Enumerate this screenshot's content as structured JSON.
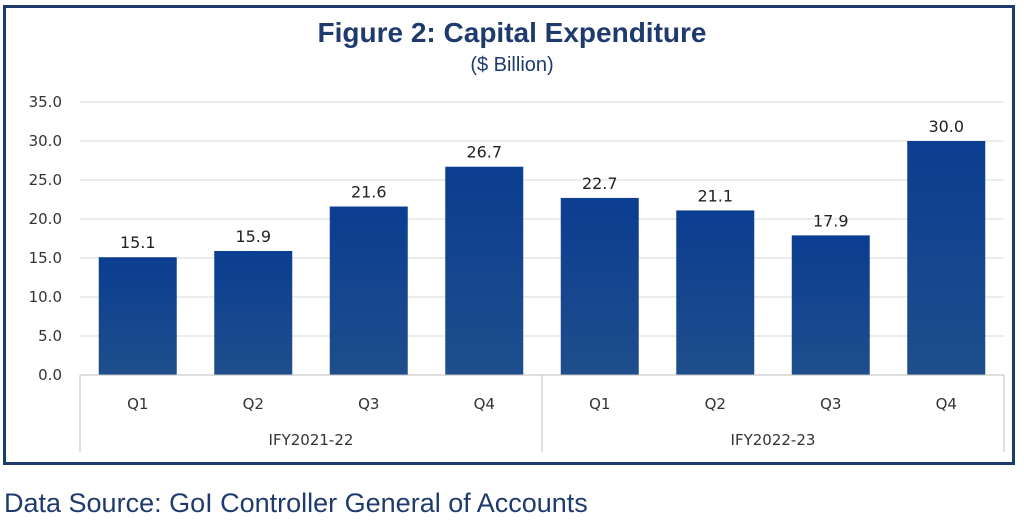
{
  "chart_data": {
    "type": "bar",
    "title": "Figure 2: Capital Expenditure",
    "subtitle": "($ Billion)",
    "groups": [
      {
        "label": "IFY2021-22",
        "categories": [
          "Q1",
          "Q2",
          "Q3",
          "Q4"
        ],
        "values": [
          15.1,
          15.9,
          21.6,
          26.7
        ]
      },
      {
        "label": "IFY2022-23",
        "categories": [
          "Q1",
          "Q2",
          "Q3",
          "Q4"
        ],
        "values": [
          22.7,
          21.1,
          17.9,
          30.0
        ]
      }
    ],
    "ylim": [
      0,
      35
    ],
    "yticks": [
      "0.0",
      "5.0",
      "10.0",
      "15.0",
      "20.0",
      "25.0",
      "30.0",
      "35.0"
    ],
    "data_labels": [
      "15.1",
      "15.9",
      "21.6",
      "26.7",
      "22.7",
      "21.1",
      "17.9",
      "30.0"
    ],
    "grid": true,
    "legend": "none",
    "colors": {
      "bar_top": "#0b3d91",
      "bar_bottom": "#1f4e8c",
      "frame": "#1f3b6e",
      "text": "#1f3b6e"
    }
  },
  "source": "Data Source: GoI Controller General of Accounts"
}
